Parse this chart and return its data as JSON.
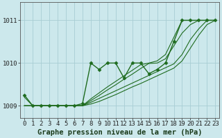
{
  "title": "Graphe pression niveau de la mer (hPa)",
  "bg_color": "#cce8ec",
  "grid_color": "#a8cdd4",
  "line_color": "#1e6b1e",
  "x_values": [
    0,
    1,
    2,
    3,
    4,
    5,
    6,
    7,
    8,
    9,
    10,
    11,
    12,
    13,
    14,
    15,
    16,
    17,
    18,
    19,
    20,
    21,
    22,
    23
  ],
  "y_main": [
    1009.25,
    1009.0,
    1009.0,
    1009.0,
    1009.0,
    1009.0,
    1009.0,
    1009.05,
    1010.0,
    1009.85,
    1010.0,
    1010.0,
    1009.65,
    1010.0,
    1010.0,
    1009.75,
    1009.85,
    1010.0,
    1010.5,
    1011.0,
    1011.0,
    1011.0,
    1011.0,
    1011.0
  ],
  "y_trend_a": [
    1009.0,
    1009.0,
    1009.0,
    1009.0,
    1009.0,
    1009.0,
    1009.0,
    1009.0,
    1009.08,
    1009.17,
    1009.26,
    1009.35,
    1009.44,
    1009.53,
    1009.62,
    1009.71,
    1009.8,
    1009.89,
    1009.98,
    1010.2,
    1010.55,
    1010.8,
    1011.0,
    1011.0
  ],
  "y_trend_b": [
    1009.0,
    1009.0,
    1009.0,
    1009.0,
    1009.0,
    1009.0,
    1009.0,
    1009.0,
    1009.12,
    1009.24,
    1009.37,
    1009.49,
    1009.62,
    1009.74,
    1009.87,
    1009.99,
    1010.0,
    1010.1,
    1010.4,
    1010.7,
    1010.9,
    1011.0,
    1011.0,
    1011.0
  ],
  "y_trend_c": [
    1009.0,
    1009.0,
    1009.0,
    1009.0,
    1009.0,
    1009.0,
    1009.0,
    1009.0,
    1009.04,
    1009.1,
    1009.18,
    1009.26,
    1009.35,
    1009.44,
    1009.52,
    1009.61,
    1009.7,
    1009.79,
    1009.88,
    1010.05,
    1010.35,
    1010.65,
    1010.9,
    1011.0
  ],
  "y_trend_d": [
    1009.2,
    1009.0,
    1009.0,
    1009.0,
    1009.0,
    1009.0,
    1009.0,
    1009.0,
    1009.16,
    1009.3,
    1009.44,
    1009.57,
    1009.7,
    1009.83,
    1009.96,
    1010.0,
    1010.05,
    1010.2,
    1010.6,
    1011.0,
    1011.0,
    1011.0,
    1011.0,
    1011.0
  ],
  "yticks": [
    1009,
    1010,
    1011
  ],
  "xticks": [
    0,
    1,
    2,
    3,
    4,
    5,
    6,
    7,
    8,
    9,
    10,
    11,
    12,
    13,
    14,
    15,
    16,
    17,
    18,
    19,
    20,
    21,
    22,
    23
  ],
  "xlim": [
    -0.5,
    23.5
  ],
  "ylim": [
    1008.72,
    1011.42
  ],
  "title_fontsize": 7.5,
  "tick_fontsize": 6.5
}
